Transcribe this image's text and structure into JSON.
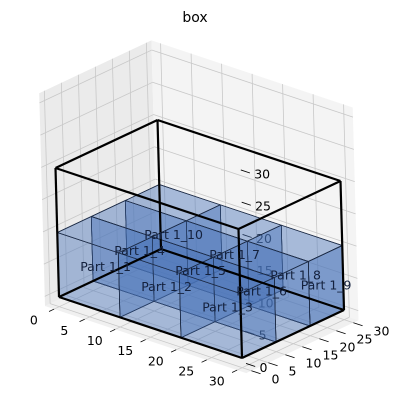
{
  "chart_data": {
    "type": "3d-box-packing",
    "title": "box",
    "container": {
      "x": [
        0,
        30
      ],
      "y": [
        0,
        30
      ],
      "z": [
        0,
        20
      ]
    },
    "axes": {
      "x": {
        "range": [
          0,
          30
        ],
        "ticks": [
          "0",
          "5",
          "10",
          "15",
          "20",
          "25",
          "30"
        ]
      },
      "y": {
        "range": [
          0,
          30
        ],
        "ticks": [
          "0",
          "5",
          "10",
          "15",
          "20",
          "25",
          "30"
        ]
      },
      "z": {
        "range": [
          0,
          30
        ],
        "ticks": [
          "0",
          "5",
          "10",
          "15",
          "20",
          "25",
          "30"
        ]
      }
    },
    "grid": true,
    "part_color": "#4a74b8",
    "container_color": "#000000",
    "parts": [
      {
        "name": "Part 1_1",
        "x": [
          0,
          10
        ],
        "y": [
          0,
          10
        ],
        "z": [
          0,
          10
        ]
      },
      {
        "name": "Part 1_2",
        "x": [
          10,
          20
        ],
        "y": [
          0,
          10
        ],
        "z": [
          0,
          10
        ]
      },
      {
        "name": "Part 1_3",
        "x": [
          20,
          30
        ],
        "y": [
          0,
          10
        ],
        "z": [
          0,
          10
        ]
      },
      {
        "name": "Part 1_4",
        "x": [
          0,
          10
        ],
        "y": [
          10,
          20
        ],
        "z": [
          0,
          10
        ]
      },
      {
        "name": "Part 1_5",
        "x": [
          10,
          20
        ],
        "y": [
          10,
          20
        ],
        "z": [
          0,
          10
        ]
      },
      {
        "name": "Part 1_6",
        "x": [
          20,
          30
        ],
        "y": [
          10,
          20
        ],
        "z": [
          0,
          10
        ]
      },
      {
        "name": "Part 1_7",
        "x": [
          10,
          20
        ],
        "y": [
          20,
          30
        ],
        "z": [
          0,
          10
        ]
      },
      {
        "name": "Part 1_8",
        "x": [
          20,
          30
        ],
        "y": [
          20,
          30
        ],
        "z": [
          0,
          10
        ]
      },
      {
        "name": "Part 1_9",
        "x": [
          30,
          30
        ],
        "y": [
          20,
          30
        ],
        "z": [
          0,
          10
        ]
      },
      {
        "name": "Part 1_10",
        "x": [
          0,
          10
        ],
        "y": [
          20,
          30
        ],
        "z": [
          0,
          10
        ]
      }
    ]
  }
}
